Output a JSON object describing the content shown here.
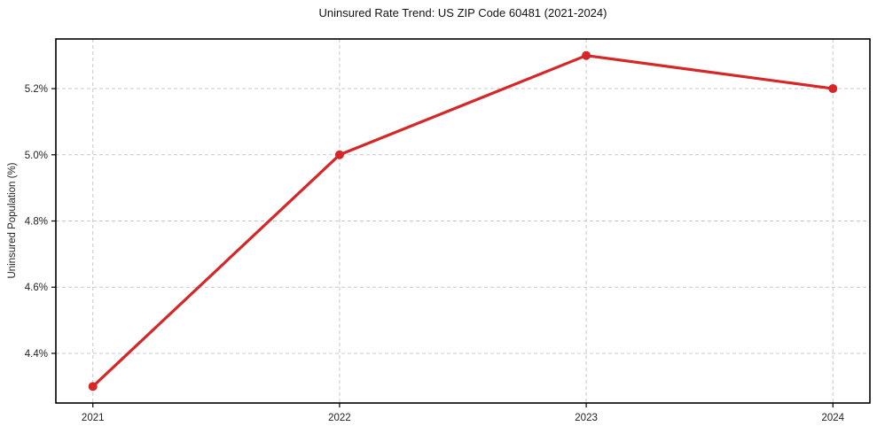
{
  "chart": {
    "title": "Uninsured Rate Trend: US ZIP Code 60481 (2021-2024)",
    "ylabel": "Uninsured Population (%)"
  },
  "chart_data": {
    "type": "line",
    "title": "Uninsured Rate Trend: US ZIP Code 60481 (2021-2024)",
    "xlabel": "",
    "ylabel": "Uninsured Population (%)",
    "x": [
      2021,
      2022,
      2023,
      2024
    ],
    "values": [
      4.3,
      5.0,
      5.3,
      5.2
    ],
    "xlim": [
      2020.85,
      2024.15
    ],
    "ylim": [
      4.25,
      5.35
    ],
    "xticks": {
      "values": [
        2021,
        2022,
        2023,
        2024
      ],
      "labels": [
        "2021",
        "2022",
        "2023",
        "2024"
      ]
    },
    "yticks": {
      "values": [
        4.4,
        4.6,
        4.8,
        5.0,
        5.2
      ],
      "labels": [
        "4.4%",
        "4.6%",
        "4.8%",
        "5.0%",
        "5.2%"
      ]
    },
    "grid": true,
    "grid_style": "dashed",
    "legend": false,
    "colors": {
      "line": "#d62728",
      "marker": "#d62728",
      "grid": "#c9c9c9",
      "frame": "#000000",
      "tick_text": "#222222",
      "background": "#ffffff"
    }
  }
}
